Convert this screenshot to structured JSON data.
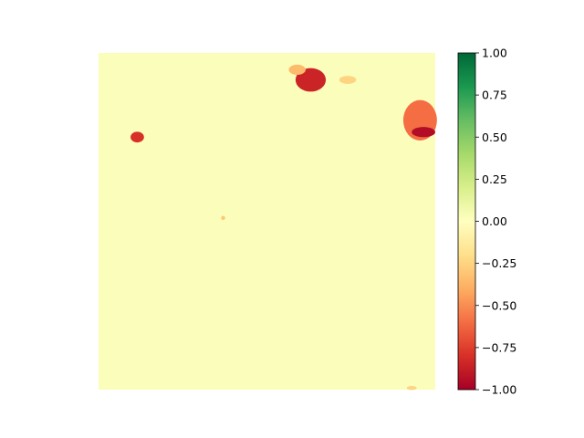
{
  "chart_data": {
    "type": "heatmap",
    "title": "",
    "xlabel": "",
    "ylabel": "",
    "axes_visible": false,
    "grid": false,
    "background_value": 0.02,
    "colormap": {
      "name": "RdYlGn",
      "stops": [
        "#a50026",
        "#d73027",
        "#f46d43",
        "#fdae61",
        "#fee08b",
        "#ffffbf",
        "#d9ef8b",
        "#a6d96a",
        "#66bd63",
        "#1a9850",
        "#006837"
      ]
    },
    "colorbar": {
      "range": [
        -1.0,
        1.0
      ],
      "placement": "right",
      "ticks": [
        {
          "value": 1.0,
          "label": "1.00"
        },
        {
          "value": 0.75,
          "label": "0.75"
        },
        {
          "value": 0.5,
          "label": "0.50"
        },
        {
          "value": 0.25,
          "label": "0.25"
        },
        {
          "value": 0.0,
          "label": "0.00"
        },
        {
          "value": -0.25,
          "label": "−0.25"
        },
        {
          "value": -0.5,
          "label": "−0.50"
        },
        {
          "value": -0.75,
          "label": "−0.75"
        },
        {
          "value": -1.0,
          "label": "−1.00"
        }
      ]
    },
    "regions": [
      {
        "name": "upper-center-cluster",
        "cx": 0.63,
        "cy": 0.08,
        "rx": 0.045,
        "ry": 0.035,
        "value": -0.85
      },
      {
        "name": "upper-center-streak",
        "cx": 0.59,
        "cy": 0.05,
        "rx": 0.025,
        "ry": 0.015,
        "value": -0.35
      },
      {
        "name": "upper-right-small",
        "cx": 0.74,
        "cy": 0.08,
        "rx": 0.025,
        "ry": 0.012,
        "value": -0.25
      },
      {
        "name": "right-edge-cluster",
        "cx": 0.955,
        "cy": 0.2,
        "rx": 0.05,
        "ry": 0.06,
        "value": -0.6
      },
      {
        "name": "right-edge-core",
        "cx": 0.965,
        "cy": 0.235,
        "rx": 0.035,
        "ry": 0.015,
        "value": -0.95
      },
      {
        "name": "left-spot",
        "cx": 0.115,
        "cy": 0.25,
        "rx": 0.02,
        "ry": 0.016,
        "value": -0.8
      },
      {
        "name": "center-dot",
        "cx": 0.37,
        "cy": 0.49,
        "rx": 0.006,
        "ry": 0.006,
        "value": -0.3
      },
      {
        "name": "bottom-right-dot",
        "cx": 0.93,
        "cy": 0.995,
        "rx": 0.015,
        "ry": 0.006,
        "value": -0.25
      }
    ]
  }
}
